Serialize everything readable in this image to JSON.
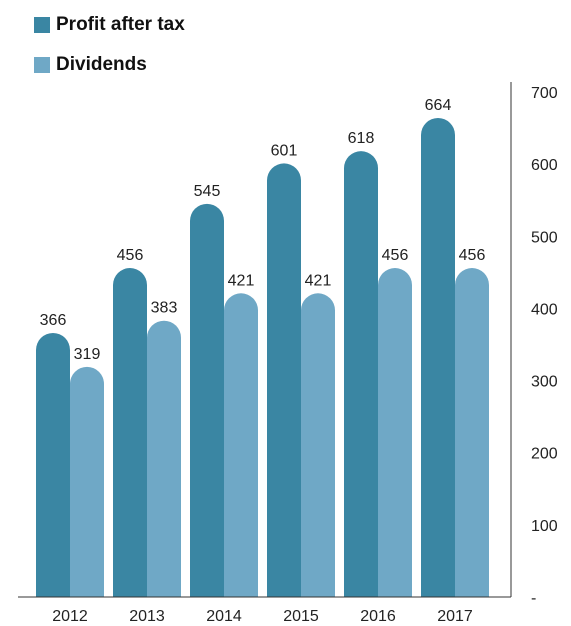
{
  "chart_data": {
    "type": "bar",
    "title": "",
    "xlabel": "",
    "ylabel": "",
    "categories": [
      "2012",
      "2013",
      "2014",
      "2015",
      "2016",
      "2017"
    ],
    "series": [
      {
        "name": "Profit after tax",
        "color": "#3a86a3",
        "values": [
          366,
          456,
          545,
          601,
          618,
          664
        ]
      },
      {
        "name": "Dividends",
        "color": "#6fa8c6",
        "values": [
          319,
          383,
          421,
          421,
          456,
          456
        ]
      }
    ],
    "ylim": [
      0,
      700
    ],
    "yticks": [
      {
        "value": 0,
        "label": "-"
      },
      {
        "value": 100,
        "label": "100"
      },
      {
        "value": 200,
        "label": "200"
      },
      {
        "value": 300,
        "label": "300"
      },
      {
        "value": 400,
        "label": "400"
      },
      {
        "value": 500,
        "label": "500"
      },
      {
        "value": 600,
        "label": "600"
      },
      {
        "value": 700,
        "label": "700"
      }
    ],
    "y_axis_position": "right",
    "legend_position": "top-left",
    "grid": false
  }
}
